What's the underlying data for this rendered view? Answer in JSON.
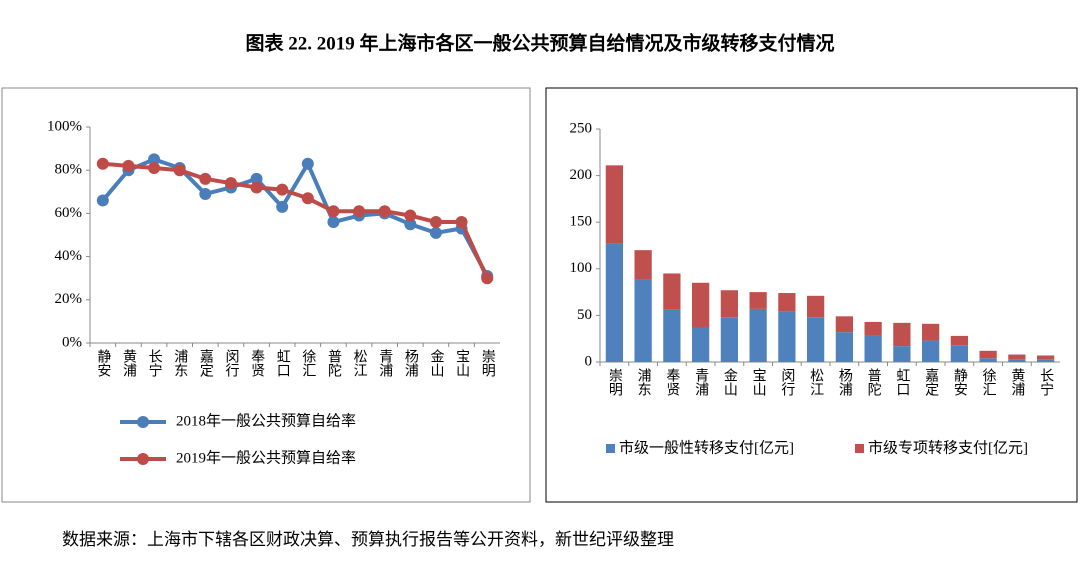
{
  "title": "图表 22. 2019 年上海市各区一般公共预算自给情况及市级转移支付情况",
  "source": "数据来源：上海市下辖各区财政决算、预算执行报告等公开资料，新世纪评级整理",
  "chart_data": [
    {
      "type": "line",
      "categories": [
        "静安",
        "黄浦",
        "长宁",
        "浦东",
        "嘉定",
        "闵行",
        "奉贤",
        "虹口",
        "徐汇",
        "普陀",
        "松江",
        "青浦",
        "杨浦",
        "金山",
        "宝山",
        "崇明"
      ],
      "series": [
        {
          "name": "2018年一般公共预算自给率",
          "color": "#4a7ebb",
          "values": [
            66,
            80,
            85,
            81,
            69,
            72,
            76,
            63,
            83,
            56,
            59,
            60,
            55,
            51,
            53,
            31
          ]
        },
        {
          "name": "2019年一般公共预算自给率",
          "color": "#be4b48",
          "values": [
            83,
            82,
            81,
            80,
            76,
            74,
            72,
            71,
            67,
            61,
            61,
            61,
            59,
            56,
            56,
            30
          ]
        }
      ],
      "ylim": [
        0,
        100
      ],
      "yticks": [
        {
          "value": 0,
          "label": "0%"
        },
        {
          "value": 20,
          "label": "20%"
        },
        {
          "value": 40,
          "label": "40%"
        },
        {
          "value": 60,
          "label": "60%"
        },
        {
          "value": 80,
          "label": "80%"
        },
        {
          "value": 100,
          "label": "100%"
        }
      ],
      "grid": false
    },
    {
      "type": "stacked_bar",
      "categories": [
        "崇明",
        "浦东",
        "奉贤",
        "青浦",
        "金山",
        "宝山",
        "闵行",
        "松江",
        "杨浦",
        "普陀",
        "虹口",
        "嘉定",
        "静安",
        "徐汇",
        "黄浦",
        "长宁"
      ],
      "series": [
        {
          "name": "市级一般性转移支付[亿元]",
          "color": "#4f81bd",
          "values": [
            127,
            89,
            56,
            37,
            48,
            57,
            54,
            48,
            32,
            28,
            17,
            23,
            18,
            4,
            3,
            3
          ]
        },
        {
          "name": "市级专项转移支付[亿元]",
          "color": "#c0504d",
          "values": [
            84,
            31,
            39,
            48,
            29,
            18,
            20,
            23,
            17,
            15,
            25,
            18,
            10,
            8,
            5,
            4
          ]
        }
      ],
      "ylim": [
        0,
        250
      ],
      "yticks": [
        0,
        50,
        100,
        150,
        200,
        250
      ],
      "grid": false
    }
  ]
}
